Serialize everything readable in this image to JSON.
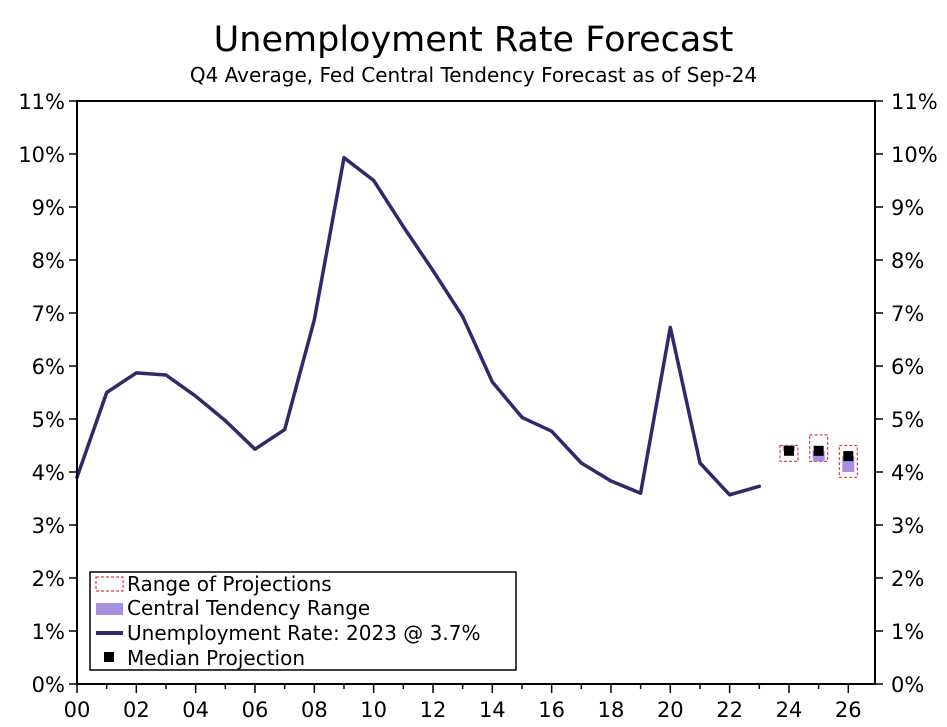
{
  "chart_data": {
    "type": "line",
    "title": "Unemployment Rate Forecast",
    "subtitle": "Q4 Average, Fed Central Tendency Forecast as of Sep-24",
    "xlabel": "",
    "ylabel": "",
    "xlim": [
      2000,
      2026.9
    ],
    "ylim": [
      0,
      11
    ],
    "y_ticks": [
      "0%",
      "1%",
      "2%",
      "3%",
      "4%",
      "5%",
      "6%",
      "7%",
      "8%",
      "9%",
      "10%",
      "11%"
    ],
    "x_ticks": [
      "00",
      "02",
      "04",
      "06",
      "08",
      "10",
      "12",
      "14",
      "16",
      "18",
      "20",
      "22",
      "24",
      "26"
    ],
    "series": [
      {
        "name": "Unemployment Rate: 2023 @ 3.7%",
        "color": "#2e2a6b",
        "x": [
          2000,
          2001,
          2002,
          2003,
          2004,
          2005,
          2006,
          2007,
          2008,
          2009,
          2010,
          2011,
          2012,
          2013,
          2014,
          2015,
          2016,
          2017,
          2018,
          2019,
          2020,
          2021,
          2022,
          2023
        ],
        "values": [
          3.9,
          5.5,
          5.87,
          5.83,
          5.43,
          4.97,
          4.43,
          4.8,
          6.87,
          9.93,
          9.5,
          8.63,
          7.8,
          6.93,
          5.7,
          5.03,
          4.77,
          4.17,
          3.83,
          3.6,
          6.73,
          4.17,
          3.57,
          3.73
        ]
      }
    ],
    "projections": {
      "x": [
        2024,
        2025,
        2026
      ],
      "range_low": [
        4.2,
        4.2,
        3.9
      ],
      "range_high": [
        4.5,
        4.7,
        4.5
      ],
      "central_low": [
        4.4,
        4.2,
        4.0
      ],
      "central_high": [
        4.5,
        4.4,
        4.3
      ],
      "median": [
        4.4,
        4.4,
        4.3
      ]
    },
    "legend": {
      "position": "bottom-left",
      "items": [
        "Range of Projections",
        "Central Tendency Range",
        "Unemployment Rate: 2023 @ 3.7%",
        "Median Projection"
      ]
    },
    "colors": {
      "line": "#2e2a6b",
      "range": "#d9453f",
      "central": "#a590e0",
      "median": "#000000"
    }
  }
}
